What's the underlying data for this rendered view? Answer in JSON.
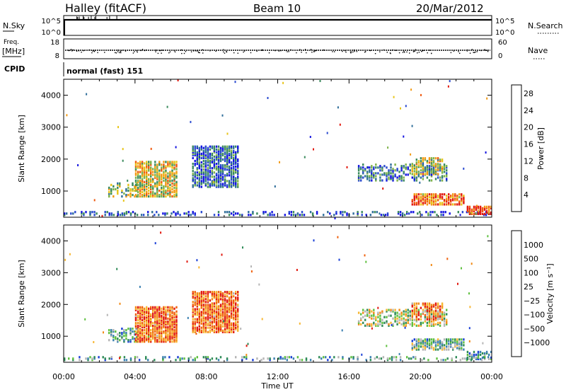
{
  "header": {
    "station": "Halley (fitACF)",
    "beam": "Beam 10",
    "date": "20/Mar/2012"
  },
  "top_panels": {
    "nsky": {
      "left_label": "N.Sky",
      "right_label": "N.Search",
      "left_ticks": [
        "10^5",
        "10^0"
      ],
      "right_ticks": [
        "10^5",
        "10^0"
      ]
    },
    "freq": {
      "label_line1": "Freq.",
      "label_line2": "[MHz]",
      "left_ticks": [
        "18",
        "8"
      ],
      "right_label": "Nave",
      "right_ticks": [
        "60",
        "0"
      ]
    },
    "cpid": {
      "label": "CPID",
      "value": "normal (fast) 151"
    }
  },
  "chart_data": [
    {
      "type": "heatmap",
      "ylabel": "Slant Range [km]",
      "yticks": [
        "1000",
        "2000",
        "3000",
        "4000"
      ],
      "ylim": [
        180,
        4500
      ],
      "xlim_hours": [
        0,
        24
      ],
      "colorbar": {
        "label": "Power [dB]",
        "ticks": [
          "4",
          "8",
          "12",
          "16",
          "20",
          "24",
          "28"
        ],
        "range": [
          0,
          30
        ],
        "colors": [
          "#1515e0",
          "#2a4ad0",
          "#2f6e9a",
          "#3a8a5c",
          "#7fb34a",
          "#e8c51a",
          "#f39a14",
          "#ef5a10",
          "#e21a10"
        ]
      },
      "features": [
        {
          "t0": 0.0,
          "t1": 23.9,
          "r0": 220,
          "r1": 320,
          "level": 0.2,
          "density": 0.35
        },
        {
          "t0": 2.5,
          "t1": 4.1,
          "r0": 800,
          "r1": 1250,
          "level": 0.55,
          "density": 0.4
        },
        {
          "t0": 4.0,
          "t1": 6.4,
          "r0": 800,
          "r1": 1900,
          "level": 0.6,
          "density": 0.75
        },
        {
          "t0": 7.2,
          "t1": 9.8,
          "r0": 1100,
          "r1": 2400,
          "level": 0.25,
          "density": 0.7
        },
        {
          "t0": 16.5,
          "t1": 21.5,
          "r0": 1300,
          "r1": 1800,
          "level": 0.3,
          "density": 0.45
        },
        {
          "t0": 19.5,
          "t1": 21.3,
          "r0": 1500,
          "r1": 2000,
          "level": 0.55,
          "density": 0.5
        },
        {
          "t0": 19.5,
          "t1": 22.4,
          "r0": 550,
          "r1": 900,
          "level": 0.8,
          "density": 0.7
        },
        {
          "t0": 22.6,
          "t1": 24.0,
          "r0": 250,
          "r1": 500,
          "level": 0.9,
          "density": 0.75
        }
      ]
    },
    {
      "type": "heatmap",
      "ylabel": "Slant Range [km]",
      "yticks": [
        "1000",
        "2000",
        "3000",
        "4000"
      ],
      "ylim": [
        180,
        4500
      ],
      "xlim_hours": [
        0,
        24
      ],
      "xticks": [
        "00:00",
        "04:00",
        "08:00",
        "12:00",
        "16:00",
        "20:00",
        "00:00"
      ],
      "xlabel": "Time UT",
      "colorbar": {
        "label": "Velocity [m s⁻¹]",
        "ticks": [
          "1000",
          "500",
          "100",
          "25",
          "−25",
          "−100",
          "−500",
          "−1000"
        ],
        "colors": [
          "#1a3fd6",
          "#3a7fb0",
          "#2e8b57",
          "#5fc040",
          "#b5b5b5",
          "#f7b733",
          "#f28b18",
          "#f0620e",
          "#e21a10"
        ]
      },
      "features": [
        {
          "t0": 0.0,
          "t1": 23.9,
          "r0": 220,
          "r1": 320,
          "level": 0.3,
          "density": 0.3
        },
        {
          "t0": 2.5,
          "t1": 4.1,
          "r0": 800,
          "r1": 1250,
          "level": 0.3,
          "density": 0.4
        },
        {
          "t0": 4.0,
          "t1": 6.4,
          "r0": 800,
          "r1": 1900,
          "level": 0.8,
          "density": 0.8
        },
        {
          "t0": 7.2,
          "t1": 9.8,
          "r0": 1100,
          "r1": 2400,
          "level": 0.8,
          "density": 0.75
        },
        {
          "t0": 16.5,
          "t1": 21.5,
          "r0": 1300,
          "r1": 1800,
          "level": 0.5,
          "density": 0.45
        },
        {
          "t0": 19.5,
          "t1": 21.3,
          "r0": 1500,
          "r1": 2000,
          "level": 0.75,
          "density": 0.5
        },
        {
          "t0": 19.5,
          "t1": 22.4,
          "r0": 550,
          "r1": 900,
          "level": 0.35,
          "density": 0.7
        },
        {
          "t0": 22.6,
          "t1": 24.0,
          "r0": 250,
          "r1": 500,
          "level": 0.3,
          "density": 0.6
        }
      ]
    }
  ]
}
